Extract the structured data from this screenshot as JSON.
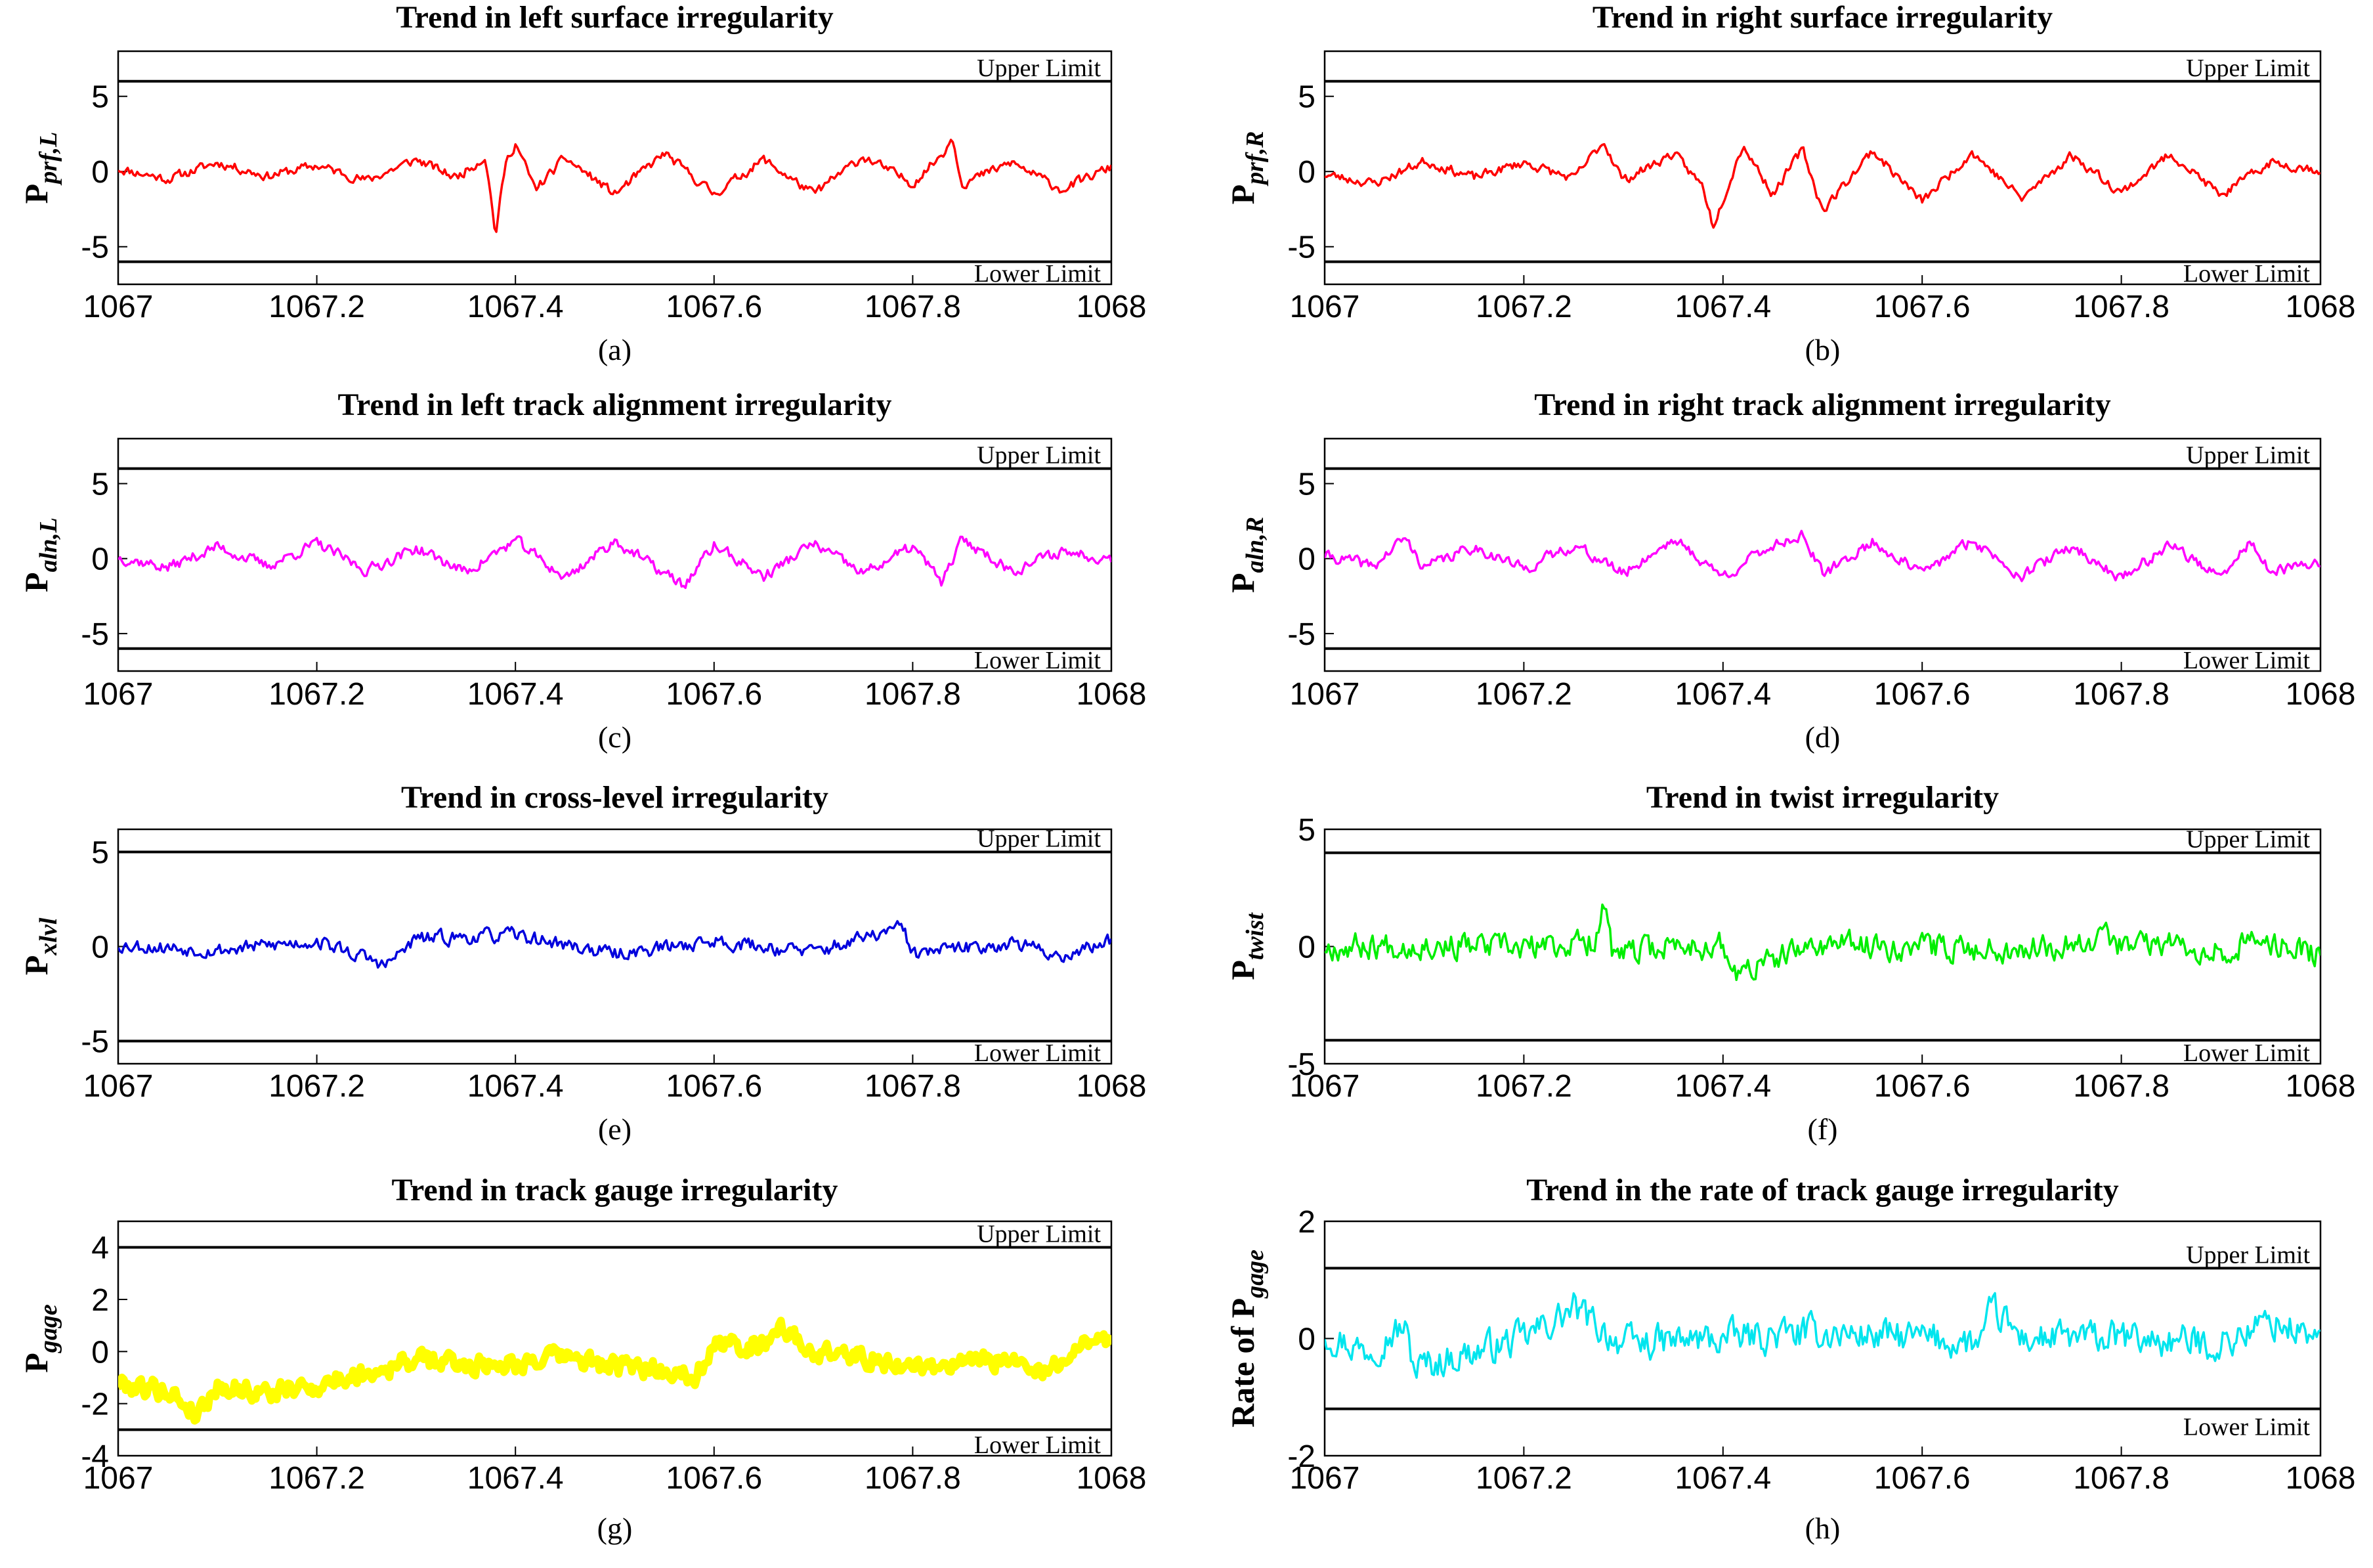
{
  "figure": {
    "x_ticks": [
      "1067",
      "1067.2",
      "1067.4",
      "1067.6",
      "1067.8",
      "1068"
    ],
    "x_range": [
      1067,
      1068
    ]
  },
  "chart_data": [
    {
      "type": "line",
      "id": "a",
      "title": "Trend in left surface irregularity",
      "ylabel_main": "P",
      "ylabel_sub": "prf,L",
      "panel_label": "(a)",
      "color": "#ff0000",
      "ylim": [
        -7.5,
        8
      ],
      "yticks": [
        -5,
        0,
        5
      ],
      "upper_limit": 6,
      "lower_limit": -6,
      "upper_label": "Upper Limit",
      "lower_label": "Lower Limit",
      "series": [
        {
          "name": "Pprf,L",
          "x": [
            1067,
            1067.05,
            1067.1,
            1067.15,
            1067.2,
            1067.25,
            1067.3,
            1067.34,
            1067.37,
            1067.38,
            1067.39,
            1067.4,
            1067.42,
            1067.45,
            1067.5,
            1067.55,
            1067.6,
            1067.65,
            1067.7,
            1067.75,
            1067.8,
            1067.83,
            1067.84,
            1067.85,
            1067.9,
            1067.95,
            1068
          ],
          "y": [
            0.2,
            -0.5,
            0.6,
            -0.3,
            0.4,
            -0.6,
            0.8,
            -0.4,
            1.0,
            -4.2,
            0.5,
            1.9,
            -1.2,
            0.9,
            -1.5,
            1.2,
            -1.5,
            0.8,
            -1.5,
            1.0,
            -0.8,
            1.2,
            2.3,
            -0.8,
            0.6,
            -1.2,
            0.3
          ],
          "noise_amplitude": 0.5,
          "seed": 11
        }
      ]
    },
    {
      "type": "line",
      "id": "b",
      "title": "Trend in right surface irregularity",
      "ylabel_main": "P",
      "ylabel_sub": "prf,R",
      "panel_label": "(b)",
      "color": "#ff0000",
      "ylim": [
        -7.5,
        8
      ],
      "yticks": [
        -5,
        0,
        5
      ],
      "upper_limit": 6,
      "lower_limit": -6,
      "upper_label": "Upper Limit",
      "lower_label": "Lower Limit",
      "series": [
        {
          "name": "Pprf,R",
          "x": [
            1067,
            1067.05,
            1067.1,
            1067.15,
            1067.2,
            1067.25,
            1067.28,
            1067.3,
            1067.35,
            1067.38,
            1067.39,
            1067.42,
            1067.45,
            1067.48,
            1067.5,
            1067.55,
            1067.6,
            1067.65,
            1067.7,
            1067.75,
            1067.8,
            1067.85,
            1067.9,
            1067.95,
            1068
          ],
          "y": [
            -0.2,
            -0.8,
            0.7,
            -0.4,
            0.6,
            -0.5,
            2.0,
            -0.6,
            1.2,
            -1.0,
            -3.6,
            1.8,
            -1.5,
            1.5,
            -2.6,
            1.4,
            -2.0,
            1.3,
            -1.8,
            1.1,
            -1.4,
            1.2,
            -1.6,
            0.6,
            0.1
          ],
          "noise_amplitude": 0.5,
          "seed": 23
        }
      ]
    },
    {
      "type": "line",
      "id": "c",
      "title": "Trend in left track alignment irregularity",
      "ylabel_main": "P",
      "ylabel_sub": "aln,L",
      "panel_label": "(c)",
      "color": "#ff00ff",
      "ylim": [
        -7.5,
        8
      ],
      "yticks": [
        -5,
        0,
        5
      ],
      "upper_limit": 6,
      "lower_limit": -6,
      "upper_label": "Upper Limit",
      "lower_label": "Lower Limit",
      "series": [
        {
          "name": "Paln,L",
          "x": [
            1067,
            1067.05,
            1067.1,
            1067.15,
            1067.2,
            1067.25,
            1067.3,
            1067.35,
            1067.4,
            1067.45,
            1067.5,
            1067.55,
            1067.57,
            1067.6,
            1067.65,
            1067.7,
            1067.75,
            1067.8,
            1067.83,
            1067.85,
            1067.9,
            1067.95,
            1068
          ],
          "y": [
            0.1,
            -0.6,
            0.8,
            -0.5,
            1.0,
            -0.8,
            0.7,
            -0.9,
            1.2,
            -1.3,
            1.2,
            -1.0,
            -1.8,
            0.9,
            -1.2,
            1.0,
            -1.0,
            0.8,
            -1.6,
            1.3,
            -0.8,
            0.5,
            0.0
          ],
          "noise_amplitude": 0.6,
          "seed": 37
        }
      ]
    },
    {
      "type": "line",
      "id": "d",
      "title": "Trend in right track alignment irregularity",
      "ylabel_main": "P",
      "ylabel_sub": "aln,R",
      "panel_label": "(d)",
      "color": "#ff00ff",
      "ylim": [
        -7.5,
        8
      ],
      "yticks": [
        -5,
        0,
        5
      ],
      "upper_limit": 6,
      "lower_limit": -6,
      "upper_label": "Upper Limit",
      "lower_label": "Lower Limit",
      "series": [
        {
          "name": "Paln,R",
          "x": [
            1067,
            1067.05,
            1067.08,
            1067.1,
            1067.15,
            1067.2,
            1067.25,
            1067.3,
            1067.35,
            1067.4,
            1067.45,
            1067.48,
            1067.5,
            1067.55,
            1067.6,
            1067.65,
            1067.7,
            1067.75,
            1067.8,
            1067.85,
            1067.9,
            1067.93,
            1067.95,
            1068
          ],
          "y": [
            0.2,
            -0.5,
            1.4,
            -0.6,
            0.8,
            -0.7,
            0.9,
            -1.0,
            1.3,
            -1.2,
            0.9,
            1.6,
            -1.1,
            1.1,
            -1.0,
            1.2,
            -1.1,
            0.8,
            -1.3,
            1.0,
            -1.4,
            1.2,
            -1.0,
            -0.2
          ],
          "noise_amplitude": 0.6,
          "seed": 41
        }
      ]
    },
    {
      "type": "line",
      "id": "e",
      "title": "Trend in cross-level irregularity",
      "ylabel_main": "P",
      "ylabel_sub": "xlvl",
      "panel_label": "(e)",
      "color": "#0000dd",
      "ylim": [
        -6.2,
        6.2
      ],
      "yticks": [
        -5,
        0,
        5
      ],
      "upper_limit": 5,
      "lower_limit": -5,
      "upper_label": "Upper Limit",
      "lower_label": "Lower Limit",
      "series": [
        {
          "name": "Pxlvl",
          "x": [
            1067,
            1067.1,
            1067.2,
            1067.27,
            1067.3,
            1067.4,
            1067.5,
            1067.6,
            1067.7,
            1067.79,
            1067.8,
            1067.9,
            1067.95,
            1068
          ],
          "y": [
            0.1,
            -0.2,
            0.3,
            -1.0,
            0.4,
            0.6,
            -0.4,
            0.3,
            -0.3,
            1.0,
            -0.4,
            0.2,
            -0.5,
            0.3
          ],
          "noise_amplitude": 0.6,
          "seed": 53
        }
      ]
    },
    {
      "type": "line",
      "id": "f",
      "title": "Trend in twist irregularity",
      "ylabel_main": "P",
      "ylabel_sub": "twist",
      "panel_label": "(f)",
      "color": "#00ee00",
      "ylim": [
        -5,
        5
      ],
      "yticks": [
        -5,
        0,
        5
      ],
      "upper_limit": 4,
      "lower_limit": -4,
      "upper_label": "Upper Limit",
      "lower_label": "Lower Limit",
      "series": [
        {
          "name": "Ptwist",
          "x": [
            1067,
            1067.1,
            1067.2,
            1067.27,
            1067.28,
            1067.29,
            1067.35,
            1067.4,
            1067.41,
            1067.5,
            1067.6,
            1067.7,
            1067.77,
            1067.78,
            1067.79,
            1067.85,
            1067.9,
            1067.95,
            1068
          ],
          "y": [
            0.0,
            0.1,
            -0.1,
            0.2,
            2.0,
            -0.5,
            0.1,
            0.0,
            -1.2,
            0.1,
            0.0,
            -0.1,
            0.3,
            1.5,
            0.0,
            0.1,
            -0.1,
            0.2,
            -0.4
          ],
          "noise_amplitude": 0.9,
          "seed": 67
        }
      ]
    },
    {
      "type": "line",
      "id": "g",
      "title": "Trend in track gauge irregularity",
      "ylabel_main": "P",
      "ylabel_sub": "gage",
      "panel_label": "(g)",
      "color": "#ffff00",
      "stroke_width": 12,
      "ylim": [
        -4,
        5
      ],
      "yticks": [
        -4,
        -2,
        0,
        2,
        4
      ],
      "upper_limit": 4,
      "lower_limit": -3,
      "upper_label": "Upper Limit",
      "lower_label": "Lower Limit",
      "series": [
        {
          "name": "Pgage",
          "x": [
            1067,
            1067.05,
            1067.08,
            1067.1,
            1067.15,
            1067.2,
            1067.25,
            1067.3,
            1067.35,
            1067.4,
            1067.45,
            1067.5,
            1067.55,
            1067.58,
            1067.6,
            1067.65,
            1067.66,
            1067.7,
            1067.75,
            1067.8,
            1067.85,
            1067.9,
            1067.93,
            1067.95,
            1067.98,
            1068
          ],
          "y": [
            -1.2,
            -1.5,
            -2.4,
            -1.3,
            -1.6,
            -1.3,
            -0.8,
            -0.3,
            -0.5,
            -0.4,
            -0.2,
            -0.6,
            -0.7,
            -0.9,
            0.2,
            0.3,
            1.0,
            0.0,
            -0.2,
            -0.6,
            -0.5,
            -0.3,
            -1.0,
            -0.2,
            0.5,
            0.3
          ],
          "noise_amplitude": 0.6,
          "seed": 79
        }
      ]
    },
    {
      "type": "line",
      "id": "h",
      "title": "Trend in the rate of track gauge irregularity",
      "ylabel_main": "Rate of P",
      "ylabel_sub": "gage",
      "panel_label": "(h)",
      "color": "#00e5ee",
      "ylim": [
        -2,
        2
      ],
      "yticks": [
        -2,
        0,
        2
      ],
      "upper_limit": 1.2,
      "lower_limit": -1.2,
      "upper_label": "Upper Limit",
      "lower_label": "Lower Limit",
      "series": [
        {
          "name": "Rate of Pgage",
          "x": [
            1067,
            1067.04,
            1067.08,
            1067.09,
            1067.2,
            1067.25,
            1067.3,
            1067.4,
            1067.5,
            1067.6,
            1067.66,
            1067.67,
            1067.7,
            1067.8,
            1067.9,
            1067.95,
            1068
          ],
          "y": [
            0.1,
            -0.2,
            0.2,
            -0.5,
            0.0,
            0.5,
            -0.1,
            0.0,
            0.1,
            0.0,
            -0.1,
            0.5,
            0.0,
            0.0,
            -0.1,
            0.3,
            0.0
          ],
          "noise_amplitude": 0.45,
          "seed": 97
        }
      ]
    }
  ]
}
